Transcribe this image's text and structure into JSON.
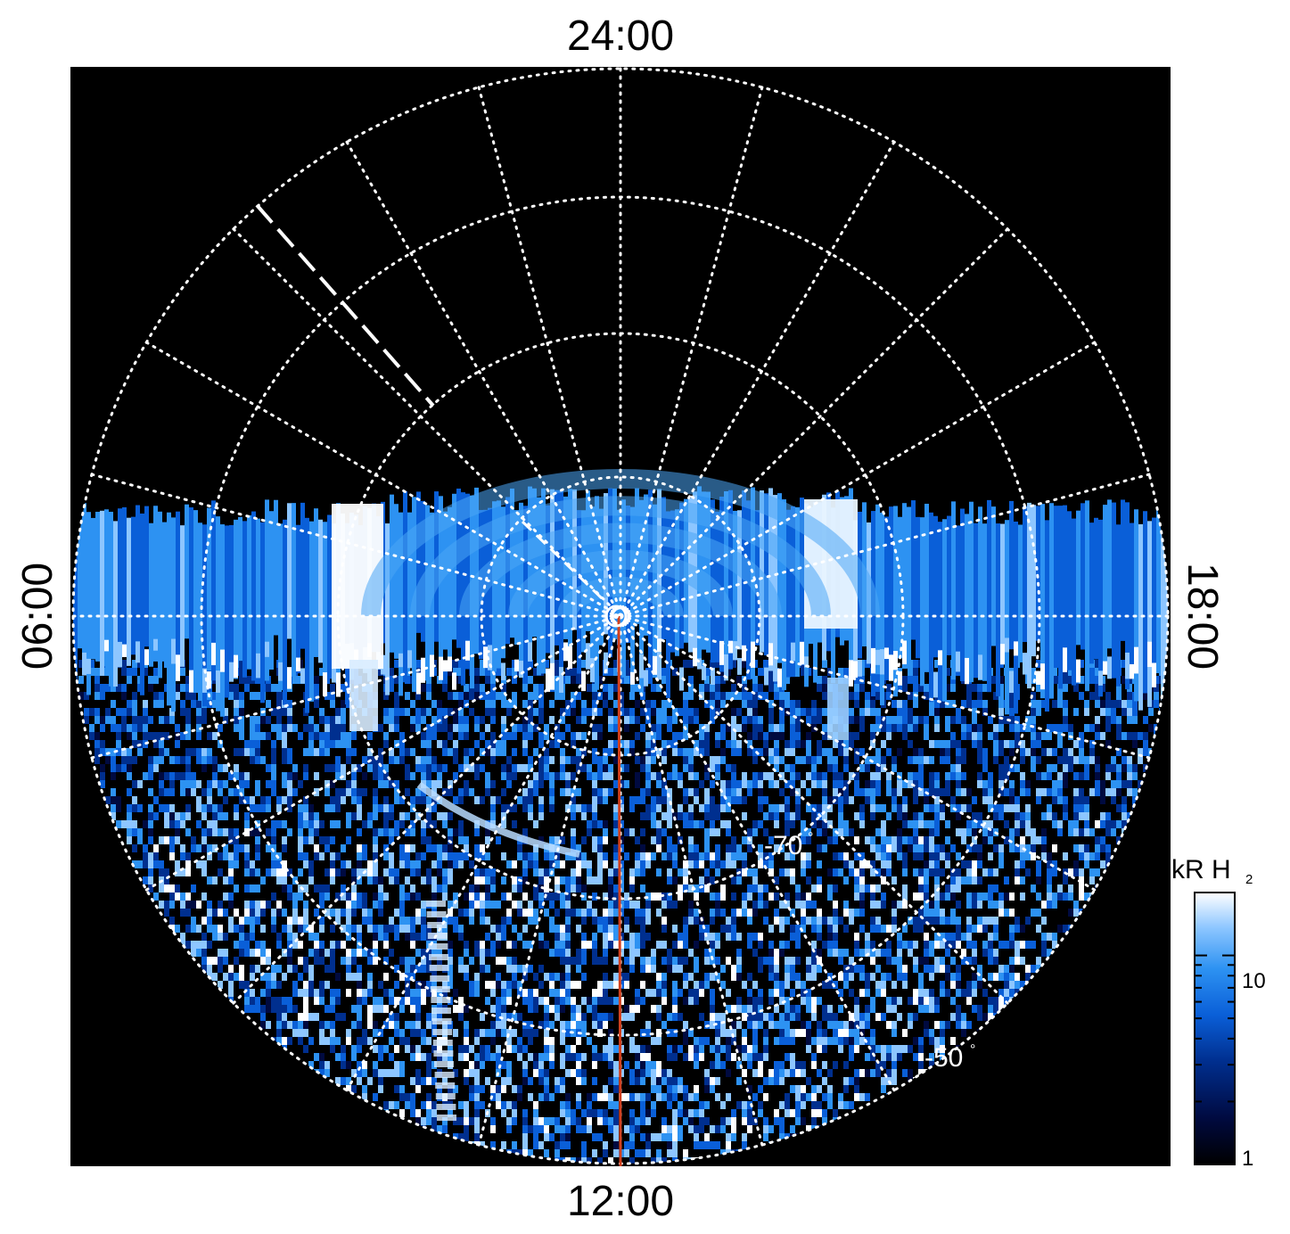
{
  "chart_data": {
    "type": "heatmap",
    "projection": "polar",
    "local_time_labels": {
      "top": "24:00",
      "bottom": "12:00",
      "left": "06:00",
      "right": "18:00"
    },
    "latitude_labels": [
      "-70",
      "-50"
    ],
    "latitude_label_degree": "°",
    "colorbar": {
      "title": "kR H",
      "title_subscript": "2",
      "scale": "log",
      "range": [
        1,
        20
      ],
      "ticks": [
        {
          "value": 1,
          "label": "1"
        },
        {
          "value": 10,
          "label": "10"
        }
      ],
      "colors": [
        "#000000",
        "#000a40",
        "#002f8f",
        "#0a5fd8",
        "#2d92f2",
        "#8dc6ff",
        "#ffffff"
      ]
    },
    "background": "#000000",
    "grid": {
      "style": "dotted",
      "color": "#ffffff",
      "latitude_rings": 5,
      "meridians": 24
    },
    "overlay_line_color": "#d2401e"
  }
}
